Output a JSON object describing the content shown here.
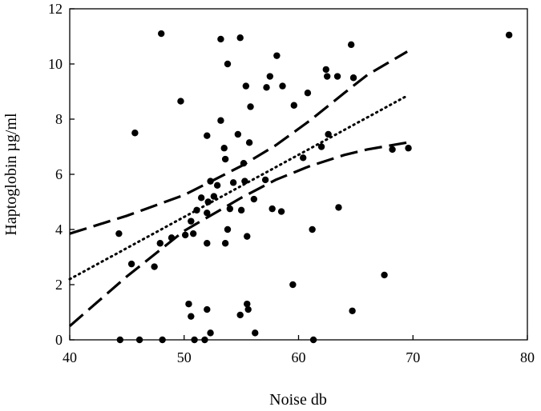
{
  "chart_data": {
    "type": "scatter",
    "title": "",
    "xlabel": "Noise db",
    "ylabel": "Haptoglobin µg/ml",
    "xlim": [
      40,
      80
    ],
    "ylim": [
      0,
      12
    ],
    "x_ticks": [
      40,
      50,
      60,
      70,
      80
    ],
    "y_ticks": [
      0,
      2,
      4,
      6,
      8,
      10,
      12
    ],
    "x_tick_labels": [
      "40",
      "50",
      "60",
      "70",
      "80"
    ],
    "y_tick_labels": [
      "0",
      "2",
      "4",
      "6",
      "8",
      "10",
      "12"
    ],
    "grid": false,
    "legend": "none",
    "points": [
      {
        "x": 44.3,
        "y": 3.85
      },
      {
        "x": 44.4,
        "y": 0.0
      },
      {
        "x": 45.4,
        "y": 2.75
      },
      {
        "x": 45.7,
        "y": 7.5
      },
      {
        "x": 46.1,
        "y": 0.0
      },
      {
        "x": 47.4,
        "y": 2.65
      },
      {
        "x": 47.9,
        "y": 3.5
      },
      {
        "x": 48.0,
        "y": 11.1
      },
      {
        "x": 48.1,
        "y": 0.0
      },
      {
        "x": 48.9,
        "y": 3.7
      },
      {
        "x": 49.7,
        "y": 8.65
      },
      {
        "x": 50.1,
        "y": 3.8
      },
      {
        "x": 50.4,
        "y": 1.3
      },
      {
        "x": 50.6,
        "y": 0.85
      },
      {
        "x": 50.6,
        "y": 4.3
      },
      {
        "x": 50.8,
        "y": 3.85
      },
      {
        "x": 50.9,
        "y": 0.0
      },
      {
        "x": 51.1,
        "y": 4.7
      },
      {
        "x": 51.5,
        "y": 5.15
      },
      {
        "x": 51.8,
        "y": 0.0
      },
      {
        "x": 52.0,
        "y": 7.4
      },
      {
        "x": 52.0,
        "y": 1.1
      },
      {
        "x": 52.0,
        "y": 4.6
      },
      {
        "x": 52.0,
        "y": 3.5
      },
      {
        "x": 52.1,
        "y": 5.0
      },
      {
        "x": 52.3,
        "y": 0.25
      },
      {
        "x": 52.3,
        "y": 5.75
      },
      {
        "x": 52.6,
        "y": 5.2
      },
      {
        "x": 52.9,
        "y": 5.6
      },
      {
        "x": 53.2,
        "y": 10.9
      },
      {
        "x": 53.2,
        "y": 7.95
      },
      {
        "x": 53.5,
        "y": 6.95
      },
      {
        "x": 53.6,
        "y": 3.5
      },
      {
        "x": 53.6,
        "y": 6.55
      },
      {
        "x": 53.8,
        "y": 10.0
      },
      {
        "x": 53.8,
        "y": 4.0
      },
      {
        "x": 54.0,
        "y": 4.75
      },
      {
        "x": 54.3,
        "y": 5.7
      },
      {
        "x": 54.7,
        "y": 7.45
      },
      {
        "x": 54.9,
        "y": 10.95
      },
      {
        "x": 54.9,
        "y": 0.9
      },
      {
        "x": 55.0,
        "y": 4.7
      },
      {
        "x": 55.2,
        "y": 6.4
      },
      {
        "x": 55.3,
        "y": 5.75
      },
      {
        "x": 55.4,
        "y": 9.2
      },
      {
        "x": 55.5,
        "y": 1.3
      },
      {
        "x": 55.5,
        "y": 3.75
      },
      {
        "x": 55.6,
        "y": 1.1
      },
      {
        "x": 55.7,
        "y": 7.15
      },
      {
        "x": 55.8,
        "y": 8.45
      },
      {
        "x": 56.1,
        "y": 5.1
      },
      {
        "x": 56.2,
        "y": 0.25
      },
      {
        "x": 57.1,
        "y": 5.8
      },
      {
        "x": 57.2,
        "y": 9.15
      },
      {
        "x": 57.5,
        "y": 9.55
      },
      {
        "x": 57.7,
        "y": 4.75
      },
      {
        "x": 58.1,
        "y": 10.3
      },
      {
        "x": 58.5,
        "y": 4.65
      },
      {
        "x": 58.6,
        "y": 9.2
      },
      {
        "x": 59.5,
        "y": 2.0
      },
      {
        "x": 59.6,
        "y": 8.5
      },
      {
        "x": 60.4,
        "y": 6.6
      },
      {
        "x": 60.8,
        "y": 8.95
      },
      {
        "x": 61.2,
        "y": 4.0
      },
      {
        "x": 61.3,
        "y": 0.0
      },
      {
        "x": 62.0,
        "y": 7.0
      },
      {
        "x": 62.4,
        "y": 9.8
      },
      {
        "x": 62.5,
        "y": 9.55
      },
      {
        "x": 62.6,
        "y": 7.45
      },
      {
        "x": 63.4,
        "y": 9.55
      },
      {
        "x": 63.5,
        "y": 4.8
      },
      {
        "x": 64.6,
        "y": 10.7
      },
      {
        "x": 64.7,
        "y": 1.05
      },
      {
        "x": 64.8,
        "y": 9.5
      },
      {
        "x": 67.5,
        "y": 2.35
      },
      {
        "x": 68.2,
        "y": 6.9
      },
      {
        "x": 69.6,
        "y": 6.95
      },
      {
        "x": 78.4,
        "y": 11.05
      }
    ],
    "series": [
      {
        "style": "dotted",
        "x": [
          40,
          69.5
        ],
        "y": [
          2.2,
          8.85
        ]
      },
      {
        "style": "dashed",
        "x": [
          40,
          45,
          50,
          55,
          58,
          61,
          64,
          66,
          69.5
        ],
        "y": [
          3.85,
          4.5,
          5.25,
          6.3,
          7.05,
          7.95,
          8.95,
          9.6,
          10.45
        ]
      },
      {
        "style": "dashed",
        "x": [
          40,
          45,
          50,
          55,
          58,
          61,
          64,
          66,
          69.5
        ],
        "y": [
          0.5,
          2.3,
          3.95,
          5.15,
          5.8,
          6.3,
          6.7,
          6.9,
          7.15
        ]
      }
    ]
  }
}
